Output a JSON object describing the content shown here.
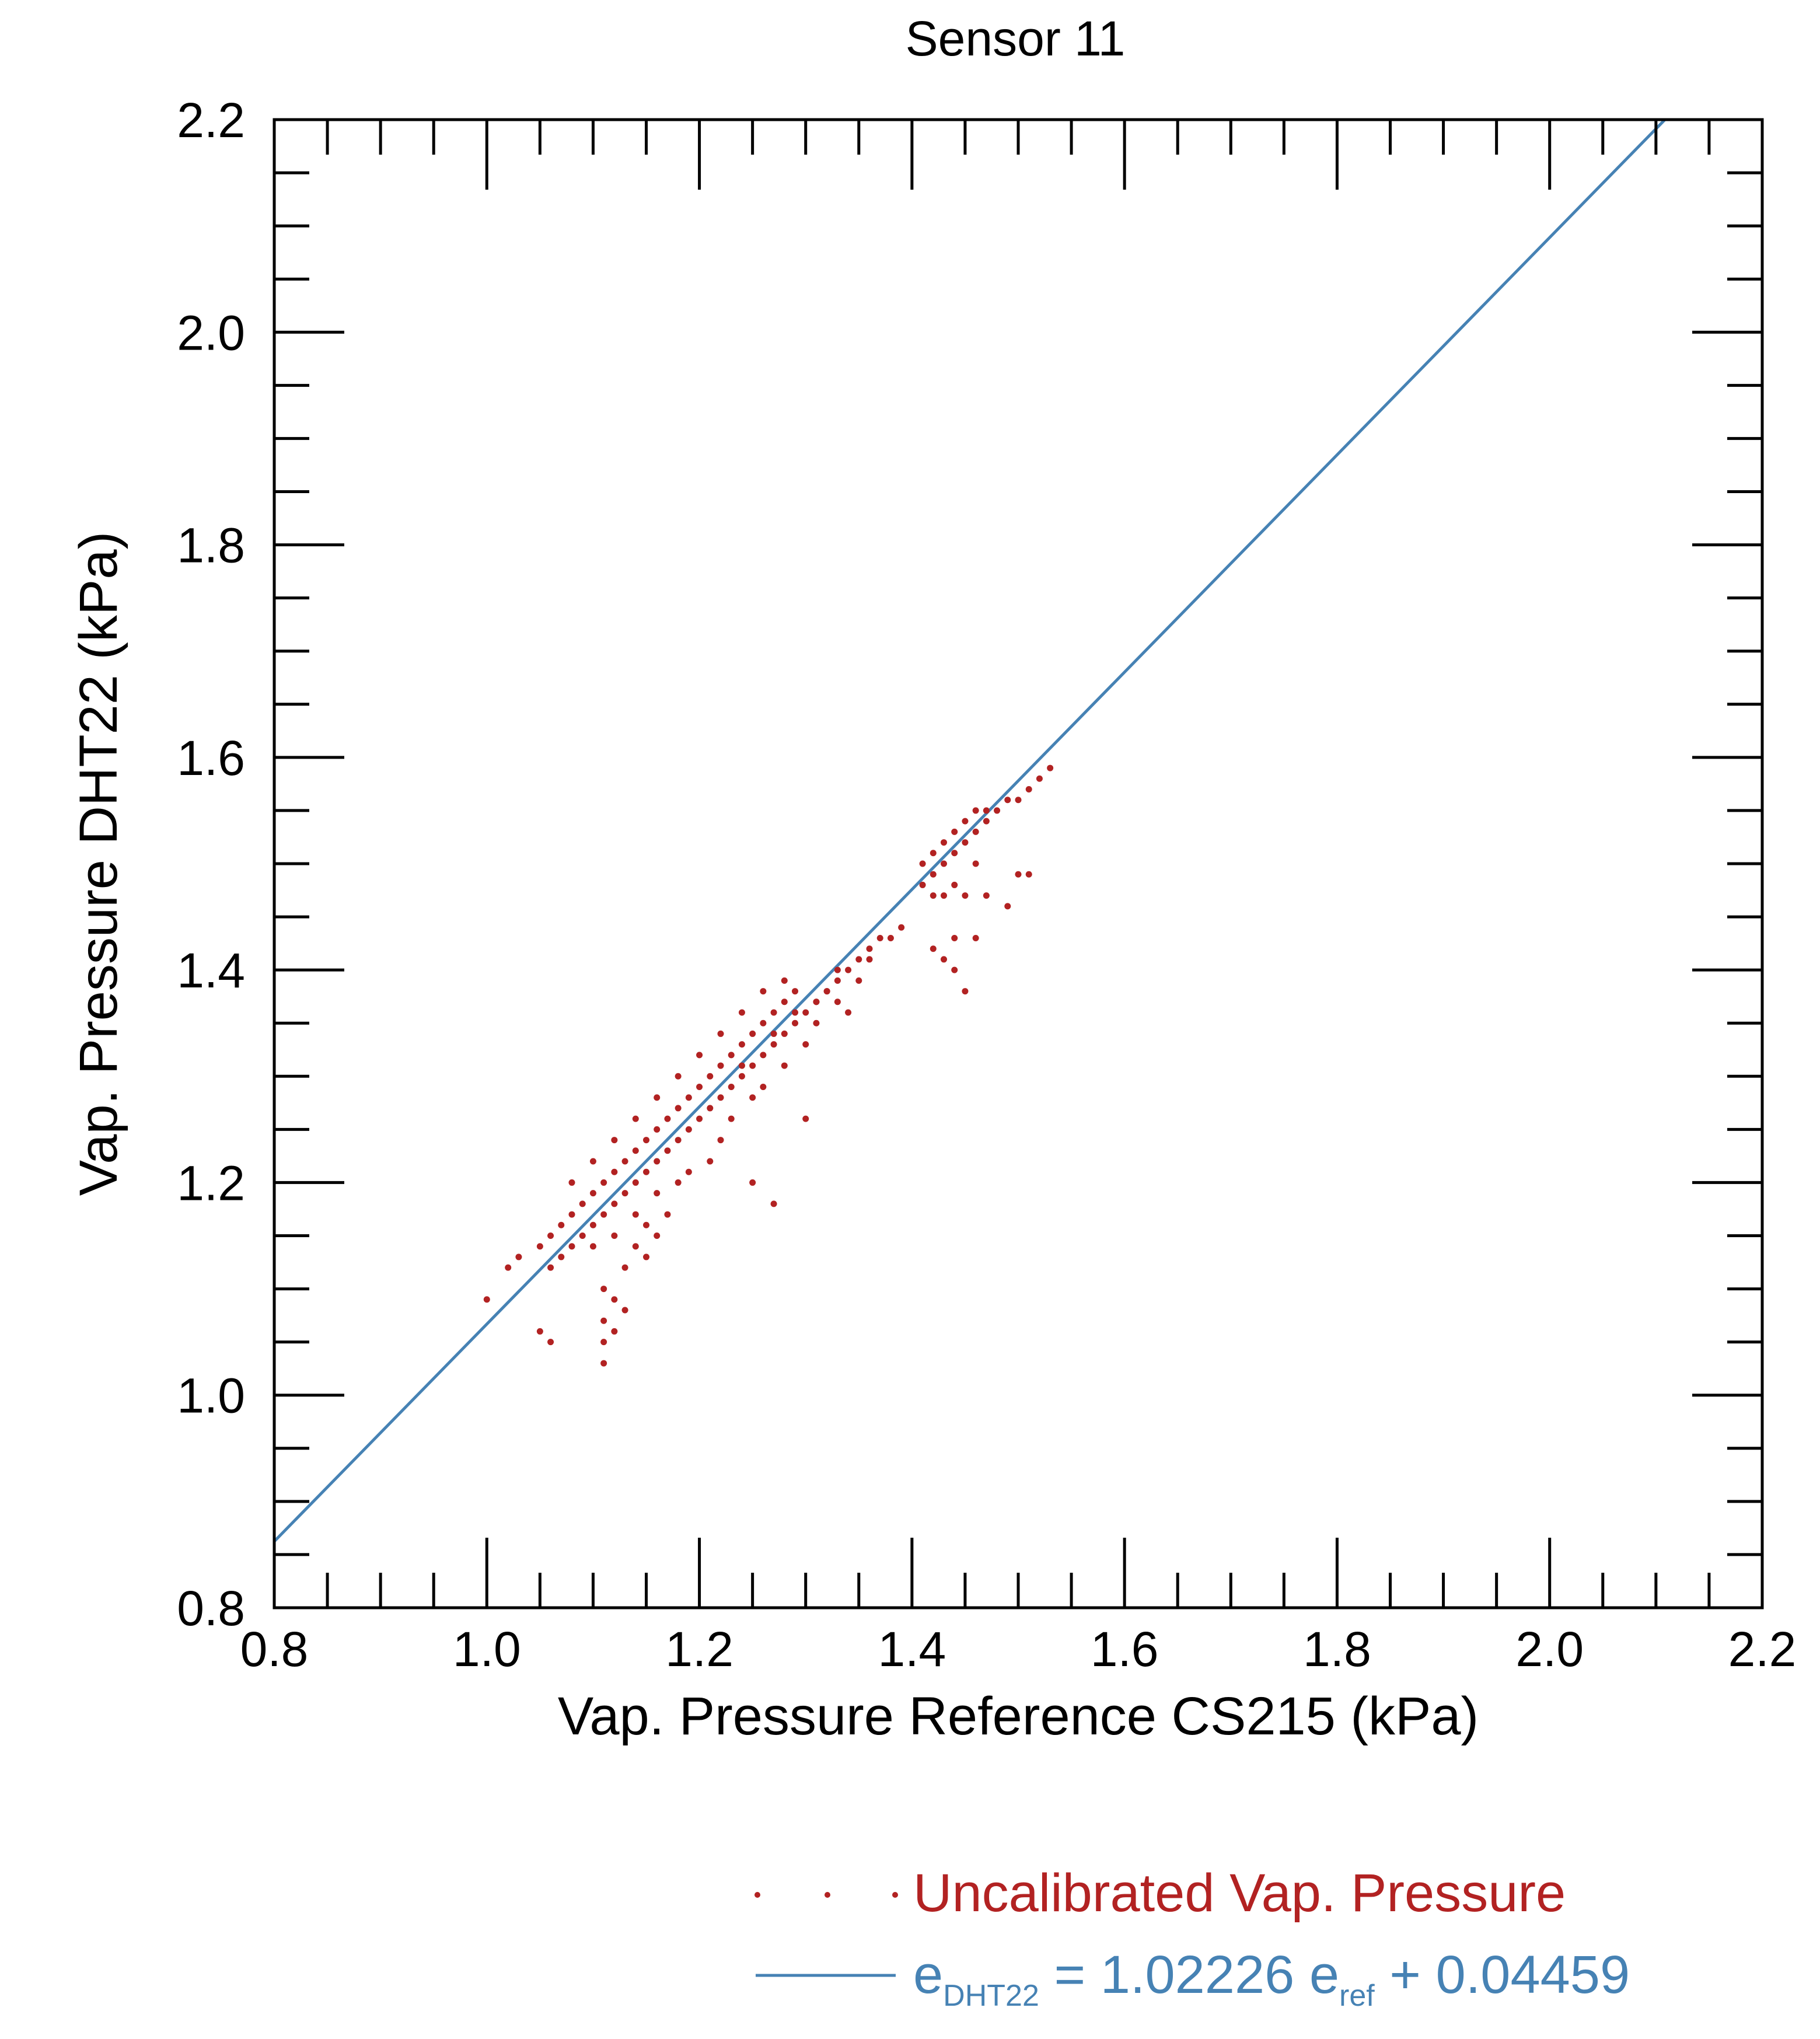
{
  "chart_data": {
    "type": "scatter",
    "title": "Sensor 11",
    "xlabel": "Vap. Pressure Reference CS215 (kPa)",
    "ylabel": "Vap. Pressure DHT22 (kPa)",
    "xlim": [
      0.8,
      2.2
    ],
    "ylim": [
      0.8,
      2.2
    ],
    "x_ticks": [
      "0.8",
      "1.0",
      "1.2",
      "1.4",
      "1.6",
      "1.8",
      "2.0",
      "2.2"
    ],
    "y_ticks": [
      "0.8",
      "1.0",
      "1.2",
      "1.4",
      "1.6",
      "1.8",
      "2.0",
      "2.2"
    ],
    "grid": false,
    "legend_position": "bottom-right, below plot",
    "series": [
      {
        "name": "Uncalibrated Vap. Pressure",
        "type": "scatter",
        "color": "#b22222",
        "points": [
          [
            1.0,
            1.09
          ],
          [
            1.02,
            1.12
          ],
          [
            1.03,
            1.13
          ],
          [
            1.05,
            1.06
          ],
          [
            1.06,
            1.05
          ],
          [
            1.05,
            1.14
          ],
          [
            1.06,
            1.15
          ],
          [
            1.07,
            1.16
          ],
          [
            1.08,
            1.17
          ],
          [
            1.09,
            1.18
          ],
          [
            1.1,
            1.19
          ],
          [
            1.11,
            1.2
          ],
          [
            1.12,
            1.21
          ],
          [
            1.13,
            1.22
          ],
          [
            1.14,
            1.23
          ],
          [
            1.15,
            1.24
          ],
          [
            1.16,
            1.25
          ],
          [
            1.17,
            1.26
          ],
          [
            1.18,
            1.27
          ],
          [
            1.19,
            1.28
          ],
          [
            1.2,
            1.29
          ],
          [
            1.21,
            1.3
          ],
          [
            1.22,
            1.31
          ],
          [
            1.23,
            1.32
          ],
          [
            1.24,
            1.33
          ],
          [
            1.25,
            1.34
          ],
          [
            1.26,
            1.35
          ],
          [
            1.27,
            1.36
          ],
          [
            1.28,
            1.37
          ],
          [
            1.29,
            1.38
          ],
          [
            1.06,
            1.12
          ],
          [
            1.07,
            1.13
          ],
          [
            1.08,
            1.14
          ],
          [
            1.09,
            1.15
          ],
          [
            1.1,
            1.16
          ],
          [
            1.11,
            1.17
          ],
          [
            1.12,
            1.18
          ],
          [
            1.13,
            1.19
          ],
          [
            1.14,
            1.2
          ],
          [
            1.15,
            1.21
          ],
          [
            1.16,
            1.22
          ],
          [
            1.17,
            1.23
          ],
          [
            1.18,
            1.24
          ],
          [
            1.19,
            1.25
          ],
          [
            1.2,
            1.26
          ],
          [
            1.21,
            1.27
          ],
          [
            1.22,
            1.28
          ],
          [
            1.23,
            1.29
          ],
          [
            1.24,
            1.3
          ],
          [
            1.25,
            1.31
          ],
          [
            1.26,
            1.32
          ],
          [
            1.27,
            1.33
          ],
          [
            1.28,
            1.34
          ],
          [
            1.29,
            1.35
          ],
          [
            1.3,
            1.36
          ],
          [
            1.31,
            1.37
          ],
          [
            1.32,
            1.38
          ],
          [
            1.33,
            1.39
          ],
          [
            1.34,
            1.4
          ],
          [
            1.35,
            1.41
          ],
          [
            1.36,
            1.42
          ],
          [
            1.37,
            1.43
          ],
          [
            1.11,
            1.1
          ],
          [
            1.12,
            1.09
          ],
          [
            1.11,
            1.07
          ],
          [
            1.12,
            1.06
          ],
          [
            1.11,
            1.05
          ],
          [
            1.11,
            1.03
          ],
          [
            1.13,
            1.08
          ],
          [
            1.12,
            1.15
          ],
          [
            1.14,
            1.14
          ],
          [
            1.15,
            1.16
          ],
          [
            1.17,
            1.17
          ],
          [
            1.16,
            1.19
          ],
          [
            1.18,
            1.2
          ],
          [
            1.19,
            1.21
          ],
          [
            1.21,
            1.22
          ],
          [
            1.22,
            1.24
          ],
          [
            1.23,
            1.26
          ],
          [
            1.25,
            1.28
          ],
          [
            1.26,
            1.29
          ],
          [
            1.28,
            1.31
          ],
          [
            1.3,
            1.33
          ],
          [
            1.31,
            1.35
          ],
          [
            1.33,
            1.37
          ],
          [
            1.24,
            1.36
          ],
          [
            1.22,
            1.34
          ],
          [
            1.2,
            1.32
          ],
          [
            1.18,
            1.3
          ],
          [
            1.16,
            1.28
          ],
          [
            1.14,
            1.26
          ],
          [
            1.12,
            1.24
          ],
          [
            1.1,
            1.22
          ],
          [
            1.08,
            1.2
          ],
          [
            1.26,
            1.38
          ],
          [
            1.28,
            1.39
          ],
          [
            1.34,
            1.36
          ],
          [
            1.3,
            1.26
          ],
          [
            1.25,
            1.2
          ],
          [
            1.27,
            1.18
          ],
          [
            1.1,
            1.14
          ],
          [
            1.13,
            1.12
          ],
          [
            1.15,
            1.13
          ],
          [
            1.16,
            1.15
          ],
          [
            1.14,
            1.17
          ],
          [
            1.41,
            1.48
          ],
          [
            1.41,
            1.5
          ],
          [
            1.42,
            1.49
          ],
          [
            1.42,
            1.51
          ],
          [
            1.43,
            1.5
          ],
          [
            1.43,
            1.52
          ],
          [
            1.44,
            1.51
          ],
          [
            1.44,
            1.53
          ],
          [
            1.45,
            1.52
          ],
          [
            1.45,
            1.54
          ],
          [
            1.46,
            1.53
          ],
          [
            1.46,
            1.55
          ],
          [
            1.47,
            1.54
          ],
          [
            1.47,
            1.55
          ],
          [
            1.48,
            1.55
          ],
          [
            1.49,
            1.56
          ],
          [
            1.5,
            1.56
          ],
          [
            1.51,
            1.57
          ],
          [
            1.52,
            1.58
          ],
          [
            1.53,
            1.59
          ],
          [
            1.42,
            1.47
          ],
          [
            1.44,
            1.48
          ],
          [
            1.46,
            1.5
          ],
          [
            1.43,
            1.47
          ],
          [
            1.45,
            1.47
          ],
          [
            1.47,
            1.47
          ],
          [
            1.5,
            1.49
          ],
          [
            1.51,
            1.49
          ],
          [
            1.49,
            1.46
          ],
          [
            1.42,
            1.42
          ],
          [
            1.43,
            1.41
          ],
          [
            1.44,
            1.43
          ],
          [
            1.46,
            1.43
          ],
          [
            1.44,
            1.4
          ],
          [
            1.45,
            1.38
          ],
          [
            1.39,
            1.44
          ],
          [
            1.38,
            1.43
          ],
          [
            1.36,
            1.41
          ],
          [
            1.35,
            1.39
          ],
          [
            1.33,
            1.4
          ],
          [
            1.32,
            1.38
          ],
          [
            1.31,
            1.37
          ],
          [
            1.29,
            1.36
          ],
          [
            1.27,
            1.34
          ],
          [
            1.24,
            1.31
          ]
        ]
      },
      {
        "name": "e_DHT22 = 1.02226 e_ref + 0.04459",
        "type": "line",
        "color": "#4682b4",
        "slope": 1.02226,
        "intercept": 0.04459
      }
    ]
  },
  "legend": {
    "scatter_label": "Uncalibrated Vap. Pressure",
    "fit_prefix": "e",
    "fit_sub": "DHT22",
    "fit_equals": " =  1.02226 e",
    "fit_ref_sub": "ref",
    "fit_tail": " + 0.04459"
  },
  "colors": {
    "scatter": "#b22222",
    "fit_line": "#4682b4",
    "axes": "#000000"
  }
}
